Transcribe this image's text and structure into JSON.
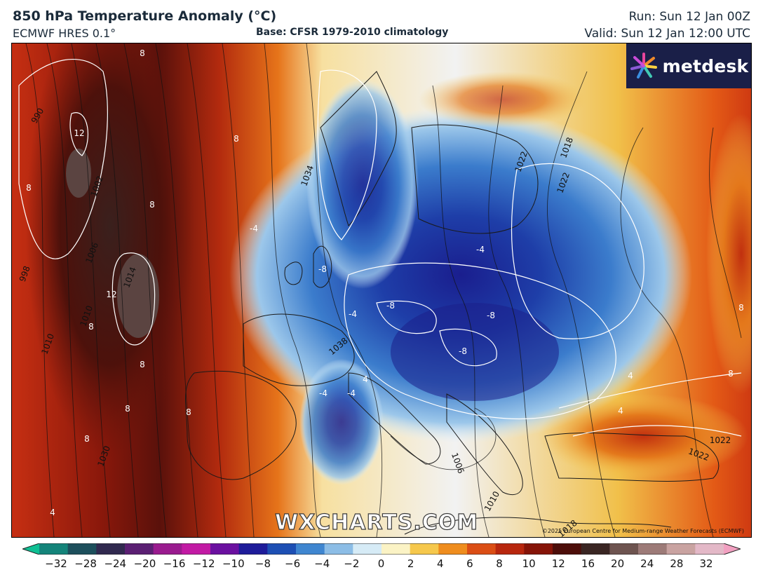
{
  "header": {
    "title": "850 hPa Temperature Anomaly (°C)",
    "model": "ECMWF HRES 0.1°",
    "base": "Base: CFSR 1979-2010 climatology",
    "run": "Run: Sun 12 Jan 00Z",
    "valid": "Valid: Sun 12 Jan 12:00 UTC"
  },
  "logo": {
    "text": "metdesk",
    "icon": "metdesk-star-icon"
  },
  "watermark": "WXCHARTS.COM",
  "copyright": "©2025 European Centre for Medium-range Weather Forecasts (ECMWF)",
  "map": {
    "isobar_labels": [
      "990",
      "1002",
      "1006",
      "998",
      "1010",
      "1014",
      "1010",
      "1030",
      "1034",
      "1038",
      "1022",
      "1018",
      "1022",
      "1006",
      "1010",
      "1018",
      "1022",
      "1022"
    ],
    "anomaly_labels": [
      "8",
      "12",
      "8",
      "8",
      "8",
      "12",
      "8",
      "8",
      "8",
      "8",
      "8",
      "4",
      "-4",
      "-8",
      "-8",
      "-4",
      "-4",
      "-8",
      "-8",
      "-4",
      "-4",
      "4",
      "4",
      "4",
      "8",
      "8"
    ]
  },
  "colorbar": {
    "ticks": [
      "−32",
      "−28",
      "−24",
      "−20",
      "−16",
      "−12",
      "−10",
      "−8",
      "−6",
      "−4",
      "−2",
      "0",
      "2",
      "4",
      "6",
      "8",
      "10",
      "12",
      "16",
      "20",
      "24",
      "28",
      "32"
    ],
    "colors": [
      "#0fbf93",
      "#14847a",
      "#1d4f5c",
      "#31294f",
      "#5b1f73",
      "#9a1b8f",
      "#c21aa4",
      "#6b10a0",
      "#1e1c9a",
      "#1d4fb4",
      "#3f86d0",
      "#8cbde6",
      "#d6ebf6",
      "#fbf3c5",
      "#f6c84c",
      "#ef8d1e",
      "#db4e15",
      "#b8270e",
      "#861408",
      "#4d0e0a",
      "#3a2623",
      "#6e5450",
      "#9d7b78",
      "#c9a3a1",
      "#e3b8c7",
      "#f2a0c1"
    ]
  }
}
